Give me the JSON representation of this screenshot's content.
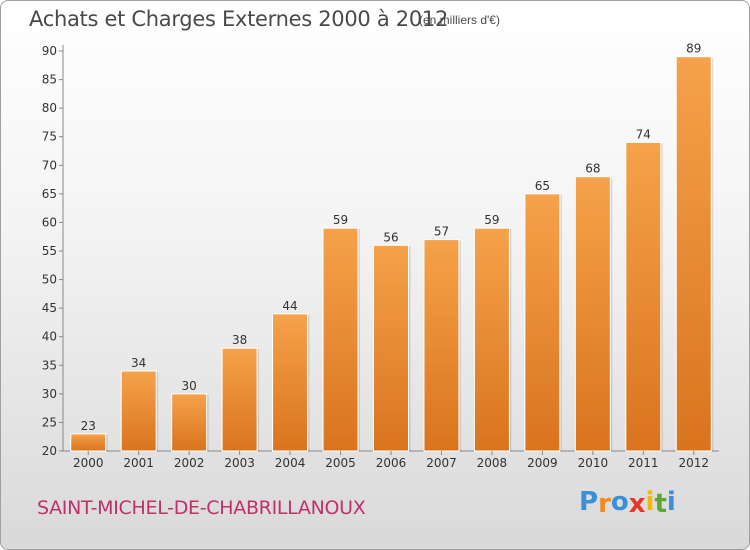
{
  "chart_data": {
    "type": "bar",
    "title": "Achats et Charges Externes 2000 à 2012",
    "unit_note": "(en milliers d'€)",
    "categories": [
      "2000",
      "2001",
      "2002",
      "2003",
      "2004",
      "2005",
      "2006",
      "2007",
      "2008",
      "2009",
      "2010",
      "2011",
      "2012"
    ],
    "values": [
      23,
      34,
      30,
      38,
      44,
      59,
      56,
      57,
      59,
      65,
      68,
      74,
      89
    ],
    "ylim": [
      20,
      90
    ],
    "yticks": [
      20,
      25,
      30,
      35,
      40,
      45,
      50,
      55,
      60,
      65,
      70,
      75,
      80,
      85,
      90
    ],
    "xlabel": "",
    "ylabel": "",
    "grid": false,
    "bar_color_top": "#f5a24a",
    "bar_color_bottom": "#d9741d"
  },
  "footer": {
    "place": "SAINT-MICHEL-DE-CHABRILLANOUX",
    "logo_letters": [
      "P",
      "r",
      "o",
      "x",
      "i",
      "t",
      "i"
    ],
    "logo_colors": [
      "#3a8fd6",
      "#f08a1c",
      "#3a8fd6",
      "#e8352a",
      "#f5b800",
      "#5aa832",
      "#3a8fd6"
    ]
  }
}
